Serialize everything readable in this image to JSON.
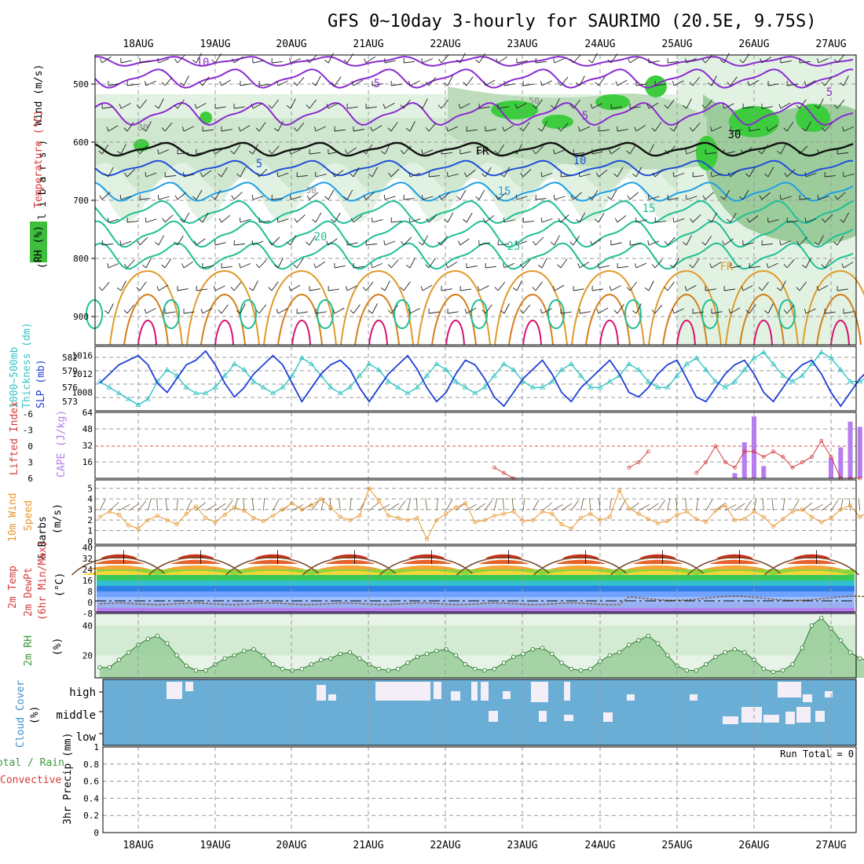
{
  "header": {
    "title": "GFS 0~10day 3-hourly for SAURIMO (20.5E, 9.75S)"
  },
  "dates": [
    "18AUG",
    "19AUG",
    "20AUG",
    "21AUG",
    "22AUG",
    "23AUG",
    "24AUG",
    "25AUG",
    "26AUG",
    "27AUG"
  ],
  "colors": {
    "rh_fill": "#9bd99b",
    "rh_dark": "#3dbf3d",
    "slp": "#1f3fd6",
    "thickness": "#35c4c4",
    "cape": "#b77cf0",
    "lifted": "#d63b3b",
    "wind": "#e8962e",
    "rh2m": "#3a9a3a",
    "cloud": "#6aaed6",
    "temp_purple": "#8a2ad0",
    "temp_blue": "#1f4fd6",
    "temp_cyan": "#1f9fe6",
    "temp_teal": "#1fbf96",
    "temp_orange": "#e09a2a",
    "temp_magenta": "#d6136f"
  },
  "panels": {
    "upper_air": {
      "ylabel_wind": "Wind (m/s)",
      "ylabel_temp": "Temperature (°C)",
      "ylabel_rh": "RH (%)",
      "ylabel_units": "( m i l l i b a r s )",
      "yticks": [
        "500",
        "600",
        "700",
        "800",
        "900"
      ],
      "contour_labels": [
        "10",
        "5",
        "5",
        "5",
        "5",
        "10",
        "15",
        "15",
        "20",
        "25",
        "FR",
        "FR",
        "30",
        "30",
        "30",
        "50"
      ]
    },
    "slp": {
      "ylabel1": "1000~500mb",
      "ylabel2": "Thickness (dm)",
      "ylabel3": "SLP (mb)",
      "left_ticks": [
        "582",
        "579",
        "576",
        "573"
      ],
      "right_ticks": [
        "1016",
        "1012",
        "1008"
      ]
    },
    "cape": {
      "ylabel1": "Lifted Index",
      "ylabel2": "CAPE (J/kg)",
      "left_ticks": [
        "-6",
        "-3",
        "0",
        "3",
        "6"
      ],
      "right_ticks": [
        "64",
        "48",
        "32",
        "16"
      ]
    },
    "wind10": {
      "ylabel1": "10m Wind",
      "ylabel2": "Speed",
      "ylabel3": "& Barbs",
      "ylabel4": "(m/s)",
      "yticks": [
        "5",
        "4",
        "3",
        "2",
        "1",
        "0"
      ]
    },
    "temp2m": {
      "ylabel1": "2m Temp",
      "ylabel2": "2m DewPt",
      "ylabel3": "(6hr Min/Max)",
      "ylabel4": "(°C)",
      "yticks": [
        "40",
        "32",
        "24",
        "16",
        "8",
        "0",
        "-8"
      ]
    },
    "rh2m": {
      "ylabel1": "2m RH",
      "ylabel2": "(%)",
      "yticks": [
        "40",
        "20"
      ]
    },
    "cloud": {
      "ylabel1": "Cloud Cover",
      "ylabel2": "(%)",
      "levels": [
        "high",
        "middle",
        "low"
      ]
    },
    "precip": {
      "ylabel1": "Total / Rain",
      "ylabel2": "Convective",
      "ylabel3": "3hr Precip (mm)",
      "yticks": [
        "0.8",
        "0.6",
        "0.4",
        "0.2",
        "0"
      ],
      "yticks_top": "1",
      "run_total": "Run Total = 0"
    }
  },
  "chart_data": [
    {
      "type": "line",
      "title": "1000~500mb Thickness (dm) / SLP (mb)",
      "x_unit": "3-hourly steps from 17AUG 12Z",
      "series": [
        {
          "name": "SLP (mb)",
          "axis": "right",
          "ylim": [
            1004,
            1018
          ],
          "values": [
            1010,
            1012,
            1014,
            1015,
            1016,
            1014,
            1010,
            1008,
            1011,
            1014,
            1015,
            1017,
            1014,
            1010,
            1007,
            1009,
            1012,
            1014,
            1016,
            1014,
            1010,
            1006,
            1009,
            1012,
            1014,
            1015,
            1013,
            1009,
            1006,
            1009,
            1012,
            1014,
            1016,
            1013,
            1009,
            1006,
            1008,
            1012,
            1015,
            1014,
            1011,
            1007,
            1005,
            1008,
            1011,
            1013,
            1015,
            1012,
            1008,
            1006,
            1009,
            1011,
            1013,
            1015,
            1012,
            1008,
            1007,
            1009,
            1012,
            1014,
            1015,
            1011,
            1007,
            1006,
            1009,
            1012,
            1014,
            1015,
            1012,
            1008,
            1006,
            1009,
            1012,
            1014,
            1015,
            1012,
            1008,
            1005,
            1008,
            1011,
            1013
          ]
        },
        {
          "name": "Thickness (dm)",
          "axis": "left",
          "ylim": [
            572,
            583
          ],
          "values": [
            577,
            576,
            575,
            574,
            573,
            574,
            577,
            579,
            578,
            576,
            575,
            575,
            576,
            578,
            580,
            579,
            577,
            576,
            575,
            576,
            578,
            581,
            580,
            578,
            576,
            575,
            576,
            578,
            580,
            579,
            577,
            576,
            575,
            576,
            578,
            580,
            579,
            577,
            576,
            575,
            576,
            578,
            580,
            579,
            577,
            576,
            576,
            577,
            579,
            580,
            578,
            576,
            576,
            577,
            578,
            580,
            579,
            577,
            576,
            576,
            578,
            580,
            581,
            579,
            577,
            576,
            577,
            579,
            581,
            582,
            580,
            578,
            577,
            578,
            580,
            582,
            581,
            579,
            577,
            577,
            578
          ]
        }
      ]
    },
    {
      "type": "bar",
      "title": "CAPE (J/kg) / Lifted Index",
      "cape_ylim": [
        0,
        64
      ],
      "li_ylim": [
        6,
        -6
      ],
      "cape_values": [
        0,
        0,
        0,
        0,
        0,
        0,
        0,
        0,
        0,
        0,
        0,
        0,
        0,
        0,
        0,
        0,
        0,
        0,
        0,
        0,
        0,
        0,
        0,
        0,
        0,
        0,
        0,
        0,
        0,
        0,
        0,
        0,
        0,
        0,
        0,
        0,
        0,
        0,
        0,
        0,
        0,
        0,
        0,
        0,
        0,
        0,
        0,
        0,
        0,
        0,
        0,
        0,
        0,
        0,
        0,
        0,
        0,
        0,
        0,
        0,
        0,
        0,
        0,
        0,
        0,
        0,
        5,
        35,
        60,
        12,
        0,
        0,
        0,
        0,
        0,
        0,
        20,
        30,
        55,
        50,
        0
      ],
      "li_values": [
        null,
        null,
        null,
        null,
        null,
        null,
        null,
        null,
        null,
        null,
        null,
        null,
        null,
        null,
        null,
        null,
        null,
        null,
        null,
        null,
        null,
        null,
        null,
        null,
        null,
        null,
        null,
        null,
        null,
        null,
        null,
        null,
        null,
        null,
        null,
        null,
        null,
        null,
        null,
        null,
        null,
        4,
        5,
        6,
        null,
        null,
        null,
        null,
        null,
        null,
        null,
        null,
        null,
        null,
        null,
        4,
        3,
        1,
        null,
        null,
        null,
        null,
        5,
        3,
        0,
        3,
        4,
        1,
        1,
        2,
        1,
        2,
        4,
        3,
        2,
        -1,
        2,
        6,
        6,
        6,
        null
      ]
    },
    {
      "type": "line",
      "title": "10m Wind Speed (m/s)",
      "ylim": [
        0,
        5.5
      ],
      "values": [
        2.3,
        2.8,
        2.5,
        1.5,
        1.2,
        2.0,
        2.4,
        2.0,
        1.6,
        2.6,
        3.3,
        2.2,
        1.8,
        2.5,
        3.2,
        2.9,
        2.2,
        1.9,
        2.4,
        3.0,
        3.6,
        3.0,
        3.4,
        4.0,
        3.2,
        2.3,
        2.0,
        2.4,
        5.0,
        3.8,
        2.4,
        2.2,
        2.0,
        2.2,
        0.2,
        2.0,
        2.6,
        3.2,
        3.6,
        1.8,
        2.0,
        2.4,
        2.6,
        2.8,
        1.9,
        2.0,
        2.8,
        2.6,
        1.6,
        1.2,
        2.2,
        2.6,
        2.0,
        2.3,
        4.8,
        3.1,
        2.6,
        2.1,
        1.7,
        1.9,
        2.5,
        2.8,
        2.1,
        1.8,
        2.9,
        3.4,
        2.0,
        2.1,
        2.8,
        2.3,
        1.4,
        2.1,
        2.8,
        3.0,
        2.3,
        1.8,
        2.2,
        3.0,
        3.4,
        2.3,
        2.9
      ]
    },
    {
      "type": "area",
      "title": "2m RH (%)",
      "ylim": [
        5,
        48
      ],
      "values": [
        12,
        12,
        17,
        22,
        27,
        31,
        33,
        28,
        20,
        13,
        10,
        10,
        14,
        18,
        20,
        23,
        24,
        20,
        14,
        11,
        10,
        11,
        14,
        17,
        18,
        21,
        22,
        18,
        14,
        11,
        10,
        11,
        15,
        19,
        21,
        23,
        24,
        20,
        14,
        11,
        10,
        11,
        15,
        19,
        21,
        24,
        25,
        21,
        15,
        11,
        10,
        11,
        16,
        20,
        22,
        27,
        30,
        33,
        28,
        20,
        13,
        10,
        10,
        14,
        19,
        22,
        24,
        22,
        17,
        11,
        9,
        10,
        14,
        25,
        40,
        45,
        38,
        30,
        22,
        18,
        16
      ]
    },
    {
      "type": "table",
      "title": "Cloud Cover (%)",
      "levels": [
        "high",
        "middle",
        "low"
      ],
      "note": "high cloud appears through 21AUG–23AUG and 26AUG; middle cloud on 23AUG–24AUG and 26AUG–27AUG"
    },
    {
      "type": "bar",
      "title": "3hr Precip (mm)",
      "ylim": [
        0,
        1
      ],
      "run_total": 0,
      "values": []
    }
  ]
}
